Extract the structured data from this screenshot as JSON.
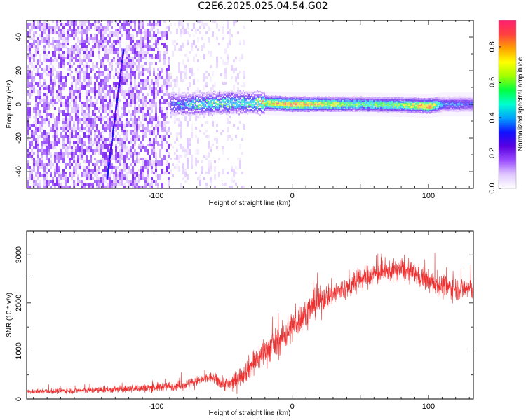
{
  "title": "C2E6.2025.025.04.54.G02",
  "chart_data": [
    {
      "type": "heatmap",
      "title": "C2E6.2025.025.04.54.G02",
      "xlabel": "Height of straight line (km)",
      "ylabel": "Frequency (Hz)",
      "xlim": [
        -195,
        133
      ],
      "ylim": [
        -50,
        50
      ],
      "xticks": [
        -100,
        0,
        100
      ],
      "yticks": [
        -40,
        -20,
        0,
        20,
        40
      ],
      "colorbar": {
        "label": "Normalized spectral amplitude",
        "range": [
          0.0,
          0.95
        ],
        "ticks": [
          0.0,
          0.2,
          0.4,
          0.6,
          0.8
        ],
        "colormap": [
          "#ffffff",
          "#e0c8ff",
          "#9a4cff",
          "#5a00e0",
          "#1010ff",
          "#00a0ff",
          "#00ffd0",
          "#00ff40",
          "#a0ff00",
          "#ffff00",
          "#ffa000",
          "#ff4040",
          "#ff2070"
        ]
      },
      "features": {
        "noise_region_x": [
          -195,
          -35
        ],
        "noise_amplitude": 0.15,
        "sweep_line": {
          "x": [
            -136,
            -124
          ],
          "y": [
            -44,
            32
          ],
          "amplitude": 0.25
        },
        "carrier": [
          {
            "x": -90,
            "freq": 0,
            "amplitude": 0.3
          },
          {
            "x": -70,
            "freq": 0,
            "amplitude": 0.45
          },
          {
            "x": -50,
            "freq": 1,
            "amplitude": 0.5
          },
          {
            "x": -30,
            "freq": 1,
            "amplitude": 0.45
          },
          {
            "x": -15,
            "freq": 0.5,
            "amplitude": 0.8
          },
          {
            "x": 0,
            "freq": 0,
            "amplitude": 0.85
          },
          {
            "x": 20,
            "freq": 0,
            "amplitude": 0.75
          },
          {
            "x": 50,
            "freq": 0,
            "amplitude": 0.6
          },
          {
            "x": 80,
            "freq": -0.5,
            "amplitude": 0.65
          },
          {
            "x": 100,
            "freq": -1,
            "amplitude": 0.9
          },
          {
            "x": 110,
            "freq": 0,
            "amplitude": 0.4
          },
          {
            "x": 133,
            "freq": 0,
            "amplitude": 0.35
          }
        ]
      }
    },
    {
      "type": "line",
      "xlabel": "Height of straight line (km)",
      "ylabel": "SNR (10 * v/v)",
      "xlim": [
        -195,
        133
      ],
      "ylim": [
        0,
        3500
      ],
      "xticks": [
        -100,
        0,
        100
      ],
      "yticks": [
        0,
        1000,
        2000,
        3000
      ],
      "color": "#f03030",
      "trend": {
        "x": [
          -195,
          -150,
          -120,
          -100,
          -80,
          -60,
          -50,
          -45,
          -40,
          -30,
          -20,
          -10,
          0,
          10,
          20,
          30,
          40,
          50,
          60,
          70,
          80,
          90,
          100,
          110,
          120,
          133
        ],
        "y": [
          150,
          180,
          210,
          240,
          290,
          450,
          320,
          300,
          420,
          700,
          1000,
          1200,
          1500,
          1800,
          2050,
          2200,
          2300,
          2500,
          2600,
          2650,
          2700,
          2600,
          2450,
          2350,
          2300,
          2300
        ]
      },
      "spread": {
        "x": [
          -195,
          -60,
          -40,
          -20,
          0,
          40,
          80,
          133
        ],
        "y": [
          80,
          200,
          350,
          550,
          600,
          450,
          400,
          450
        ]
      }
    }
  ]
}
